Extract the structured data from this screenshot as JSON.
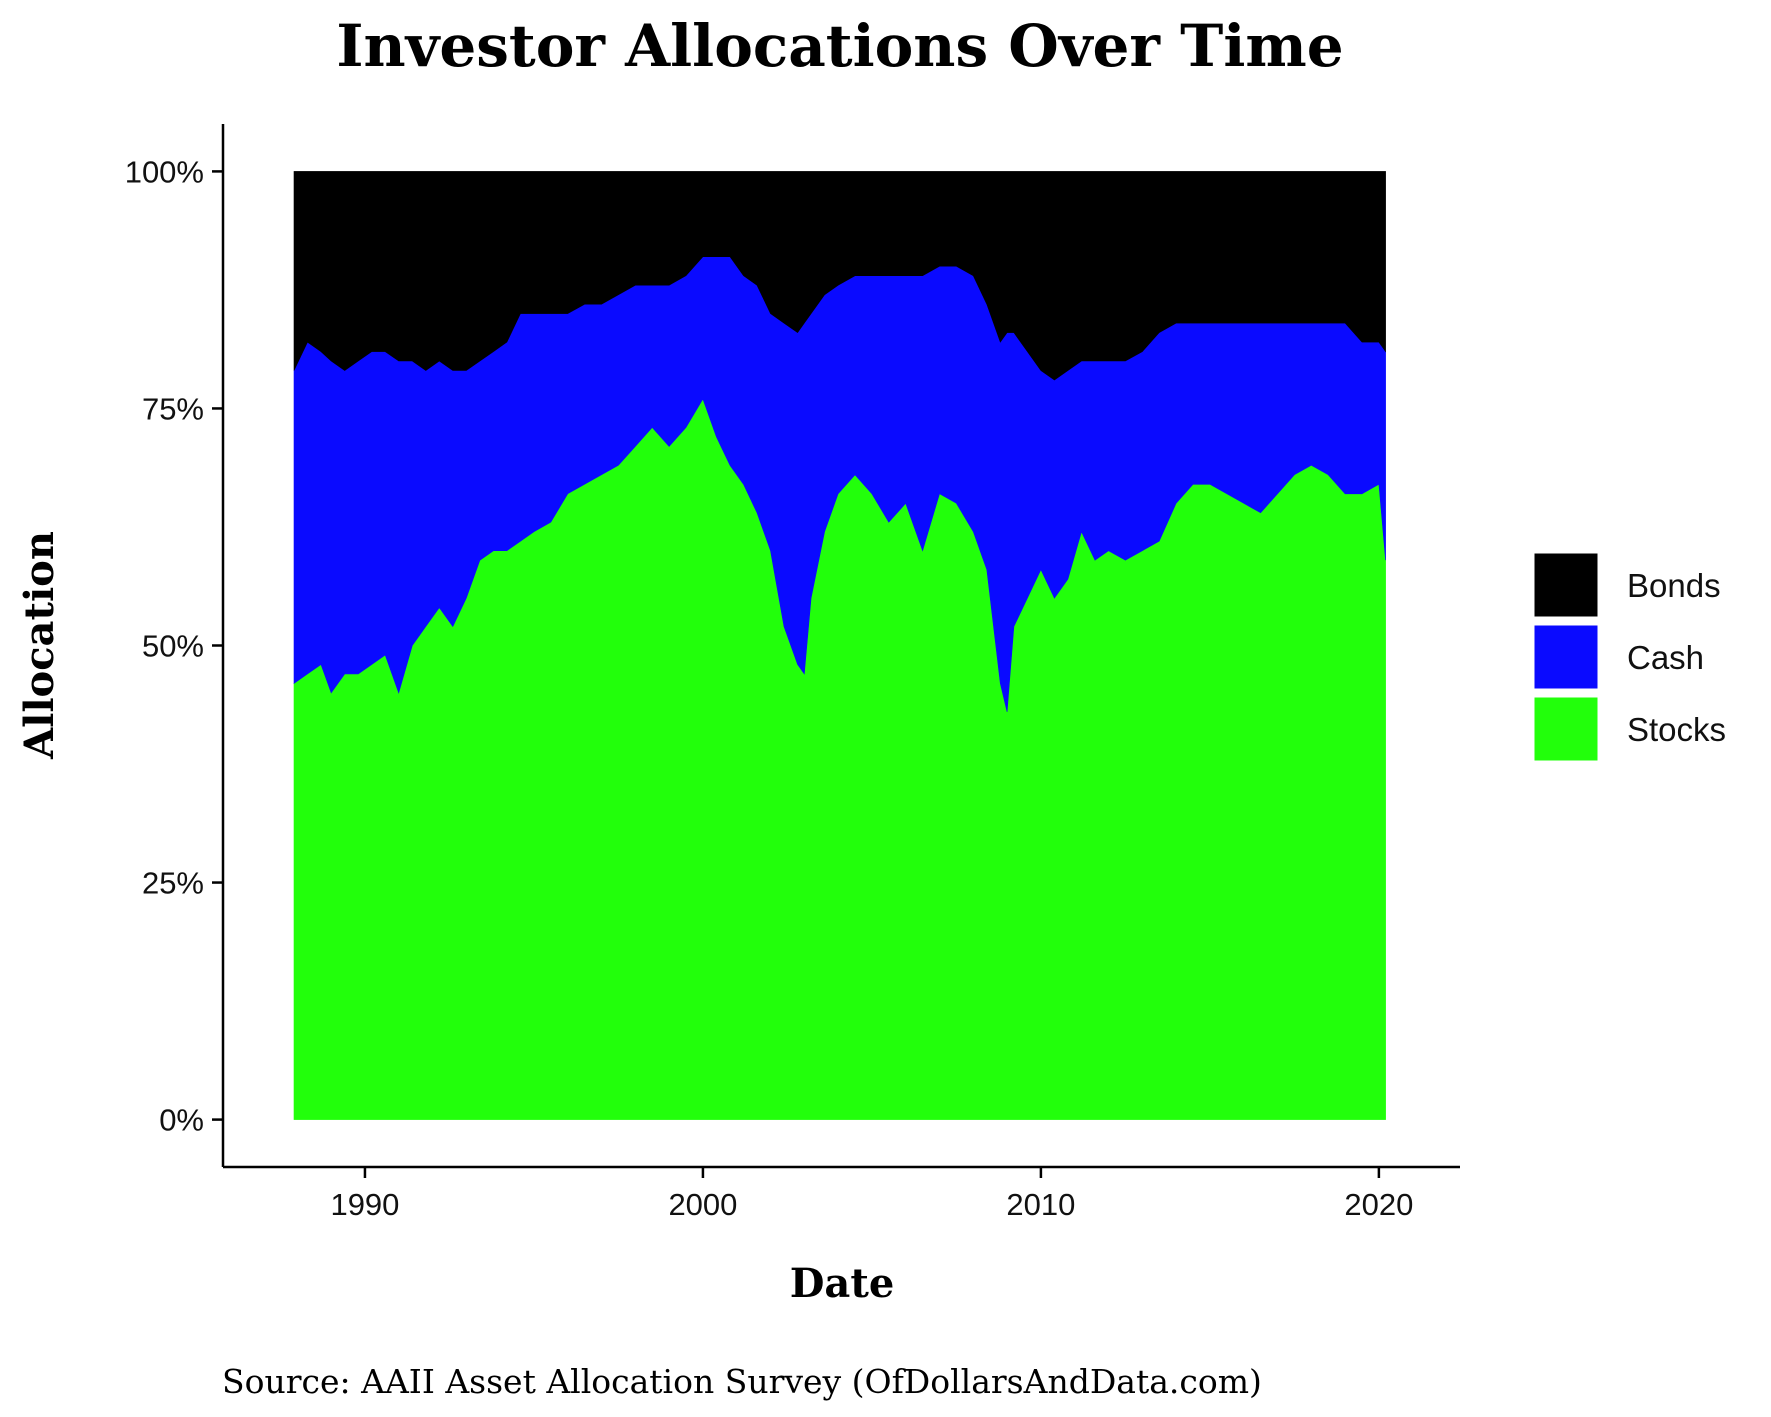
{
  "chart_data": {
    "type": "area",
    "stacked": true,
    "title": "Investor Allocations Over Time",
    "xlabel": "Date",
    "ylabel": "Allocation",
    "source": "Source: AAII Asset Allocation Survey (OfDollarsAndData.com)",
    "xlim": [
      1985.8,
      2022.4
    ],
    "ylim": [
      -0.05,
      1.05
    ],
    "x_ticks": [
      {
        "value": 1990,
        "label": "1990"
      },
      {
        "value": 2000,
        "label": "2000"
      },
      {
        "value": 2010,
        "label": "2010"
      },
      {
        "value": 2020,
        "label": "2020"
      }
    ],
    "y_ticks": [
      {
        "value": 0,
        "label": "0%"
      },
      {
        "value": 0.25,
        "label": "25%"
      },
      {
        "value": 0.5,
        "label": "50%"
      },
      {
        "value": 0.75,
        "label": "75%"
      },
      {
        "value": 1.0,
        "label": "100%"
      }
    ],
    "grid": false,
    "legend_position": "right",
    "x": [
      1987.9,
      1988.3,
      1988.7,
      1989.0,
      1989.4,
      1989.8,
      1990.2,
      1990.6,
      1991.0,
      1991.4,
      1991.8,
      1992.2,
      1992.6,
      1993.0,
      1993.4,
      1993.8,
      1994.2,
      1994.6,
      1995.0,
      1995.5,
      1996.0,
      1996.5,
      1997.0,
      1997.5,
      1998.0,
      1998.5,
      1999.0,
      1999.5,
      2000.0,
      2000.4,
      2000.8,
      2001.2,
      2001.6,
      2002.0,
      2002.4,
      2002.8,
      2003.0,
      2003.2,
      2003.6,
      2004.0,
      2004.5,
      2005.0,
      2005.5,
      2006.0,
      2006.5,
      2007.0,
      2007.5,
      2008.0,
      2008.4,
      2008.8,
      2009.0,
      2009.2,
      2009.6,
      2010.0,
      2010.4,
      2010.8,
      2011.2,
      2011.6,
      2012.0,
      2012.5,
      2013.0,
      2013.5,
      2014.0,
      2014.5,
      2015.0,
      2015.5,
      2016.0,
      2016.5,
      2017.0,
      2017.5,
      2018.0,
      2018.5,
      2019.0,
      2019.5,
      2020.0,
      2020.2
    ],
    "series": [
      {
        "name": "Stocks",
        "color": "#22ff0b",
        "values": [
          0.46,
          0.47,
          0.48,
          0.45,
          0.47,
          0.47,
          0.48,
          0.49,
          0.45,
          0.5,
          0.52,
          0.54,
          0.52,
          0.55,
          0.59,
          0.6,
          0.6,
          0.61,
          0.62,
          0.63,
          0.66,
          0.67,
          0.68,
          0.69,
          0.71,
          0.73,
          0.71,
          0.73,
          0.76,
          0.72,
          0.69,
          0.67,
          0.64,
          0.6,
          0.52,
          0.48,
          0.47,
          0.55,
          0.62,
          0.66,
          0.68,
          0.66,
          0.63,
          0.65,
          0.6,
          0.66,
          0.65,
          0.62,
          0.58,
          0.46,
          0.43,
          0.52,
          0.55,
          0.58,
          0.55,
          0.57,
          0.62,
          0.59,
          0.6,
          0.59,
          0.6,
          0.61,
          0.65,
          0.67,
          0.67,
          0.66,
          0.65,
          0.64,
          0.66,
          0.68,
          0.69,
          0.68,
          0.66,
          0.66,
          0.67,
          0.59
        ]
      },
      {
        "name": "Cash",
        "color": "#0a0aff",
        "values": [
          0.33,
          0.35,
          0.33,
          0.35,
          0.32,
          0.33,
          0.33,
          0.32,
          0.35,
          0.3,
          0.27,
          0.26,
          0.27,
          0.24,
          0.21,
          0.21,
          0.22,
          0.24,
          0.23,
          0.22,
          0.19,
          0.19,
          0.18,
          0.18,
          0.17,
          0.15,
          0.17,
          0.16,
          0.15,
          0.19,
          0.22,
          0.22,
          0.24,
          0.25,
          0.32,
          0.35,
          0.37,
          0.3,
          0.25,
          0.22,
          0.21,
          0.23,
          0.26,
          0.24,
          0.29,
          0.24,
          0.25,
          0.27,
          0.28,
          0.36,
          0.4,
          0.31,
          0.26,
          0.21,
          0.23,
          0.22,
          0.18,
          0.21,
          0.2,
          0.21,
          0.21,
          0.22,
          0.19,
          0.17,
          0.17,
          0.18,
          0.19,
          0.2,
          0.18,
          0.16,
          0.15,
          0.16,
          0.18,
          0.16,
          0.15,
          0.22
        ]
      },
      {
        "name": "Bonds",
        "color": "#000000",
        "values": [
          0.21,
          0.18,
          0.19,
          0.2,
          0.21,
          0.2,
          0.19,
          0.19,
          0.2,
          0.2,
          0.21,
          0.2,
          0.21,
          0.21,
          0.2,
          0.19,
          0.18,
          0.15,
          0.15,
          0.15,
          0.15,
          0.14,
          0.14,
          0.13,
          0.12,
          0.12,
          0.12,
          0.11,
          0.09,
          0.09,
          0.09,
          0.11,
          0.12,
          0.15,
          0.16,
          0.17,
          0.16,
          0.15,
          0.13,
          0.12,
          0.11,
          0.11,
          0.11,
          0.11,
          0.11,
          0.1,
          0.1,
          0.11,
          0.14,
          0.18,
          0.17,
          0.17,
          0.19,
          0.21,
          0.22,
          0.21,
          0.2,
          0.2,
          0.2,
          0.2,
          0.19,
          0.17,
          0.16,
          0.16,
          0.16,
          0.16,
          0.16,
          0.16,
          0.16,
          0.16,
          0.16,
          0.16,
          0.16,
          0.18,
          0.18,
          0.19
        ]
      }
    ],
    "legend": [
      "Bonds",
      "Cash",
      "Stocks"
    ]
  }
}
